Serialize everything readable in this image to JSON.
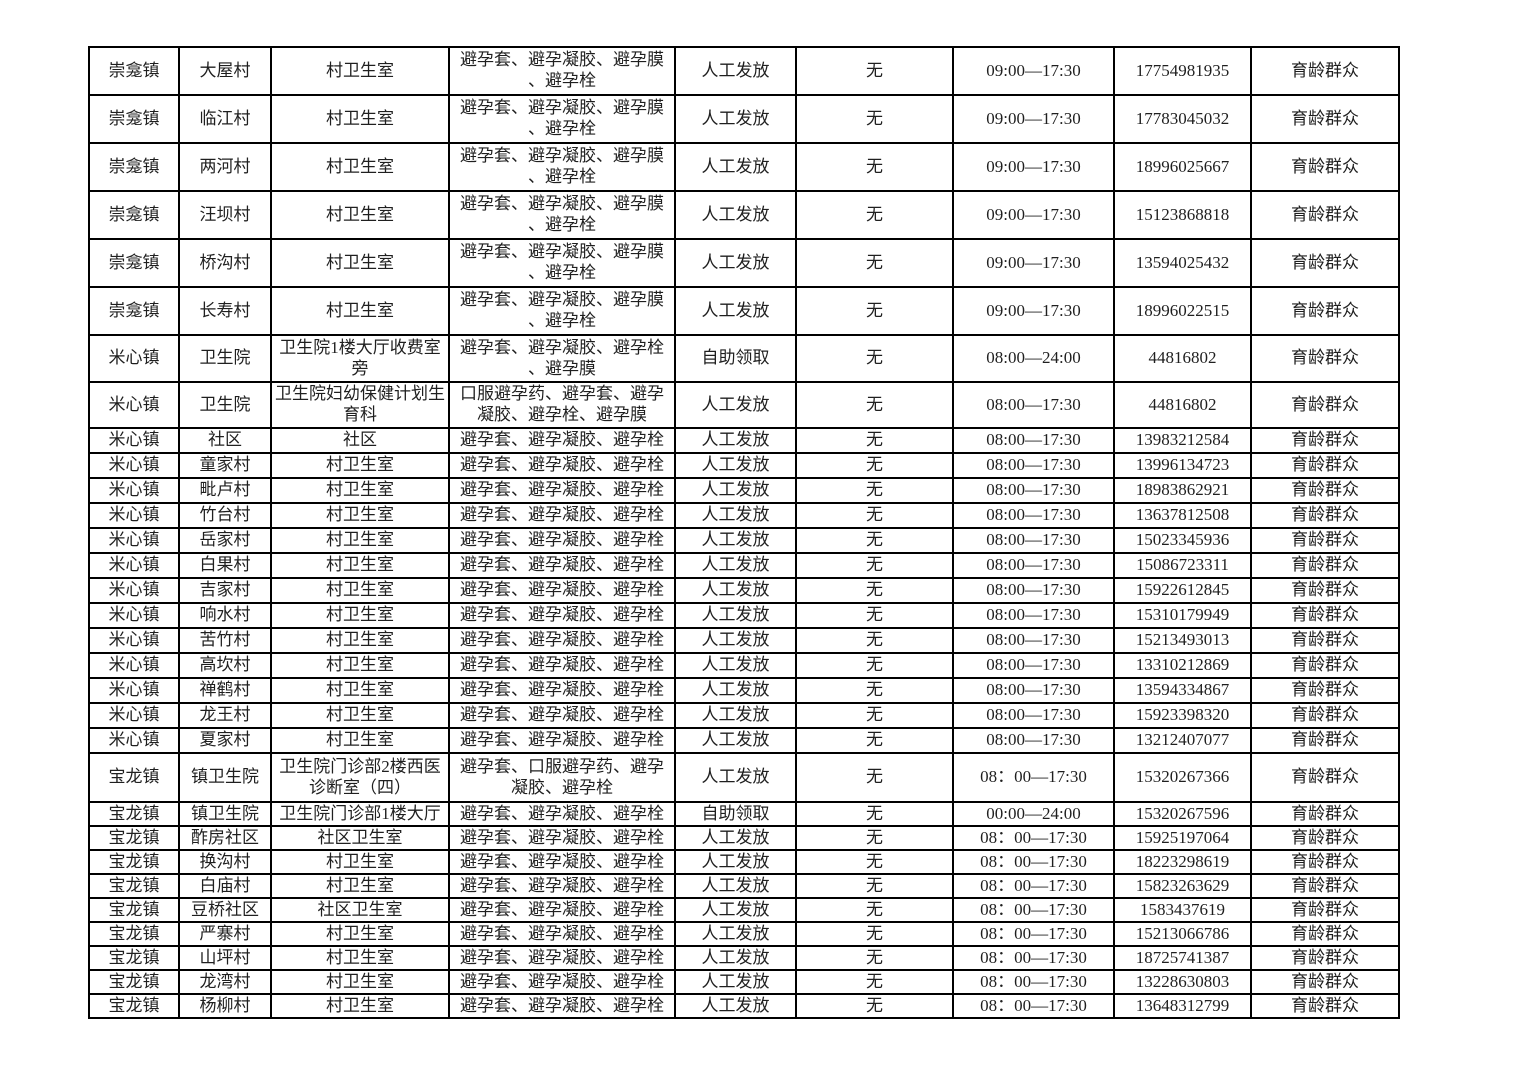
{
  "page": {
    "background_color": "#ffffff",
    "text_color": "#1f1f1f",
    "grid_color": "#000000"
  },
  "table": {
    "rows": [
      [
        "崇龛镇",
        "大屋村",
        "村卫生室",
        "避孕套、避孕凝胶、避孕膜、避孕栓",
        "人工发放",
        "无",
        "09:00—17:30",
        "17754981935",
        "育龄群众"
      ],
      [
        "崇龛镇",
        "临江村",
        "村卫生室",
        "避孕套、避孕凝胶、避孕膜、避孕栓",
        "人工发放",
        "无",
        "09:00—17:30",
        "17783045032",
        "育龄群众"
      ],
      [
        "崇龛镇",
        "两河村",
        "村卫生室",
        "避孕套、避孕凝胶、避孕膜、避孕栓",
        "人工发放",
        "无",
        "09:00—17:30",
        "18996025667",
        "育龄群众"
      ],
      [
        "崇龛镇",
        "汪坝村",
        "村卫生室",
        "避孕套、避孕凝胶、避孕膜、避孕栓",
        "人工发放",
        "无",
        "09:00—17:30",
        "15123868818",
        "育龄群众"
      ],
      [
        "崇龛镇",
        "桥沟村",
        "村卫生室",
        "避孕套、避孕凝胶、避孕膜、避孕栓",
        "人工发放",
        "无",
        "09:00—17:30",
        "13594025432",
        "育龄群众"
      ],
      [
        "崇龛镇",
        "长寿村",
        "村卫生室",
        "避孕套、避孕凝胶、避孕膜、避孕栓",
        "人工发放",
        "无",
        "09:00—17:30",
        "18996022515",
        "育龄群众"
      ],
      [
        "米心镇",
        "卫生院",
        "卫生院1楼大厅收费室旁",
        "避孕套、避孕凝胶、避孕栓、避孕膜",
        "自助领取",
        "无",
        "08:00—24:00",
        "44816802",
        "育龄群众"
      ],
      [
        "米心镇",
        "卫生院",
        "卫生院妇幼保健计划生育科",
        "口服避孕药、避孕套、避孕凝胶、避孕栓、避孕膜",
        "人工发放",
        "无",
        "08:00—17:30",
        "44816802",
        "育龄群众"
      ],
      [
        "米心镇",
        "社区",
        "社区",
        "避孕套、避孕凝胶、避孕栓",
        "人工发放",
        "无",
        "08:00—17:30",
        "13983212584",
        "育龄群众"
      ],
      [
        "米心镇",
        "童家村",
        "村卫生室",
        "避孕套、避孕凝胶、避孕栓",
        "人工发放",
        "无",
        "08:00—17:30",
        "13996134723",
        "育龄群众"
      ],
      [
        "米心镇",
        "毗卢村",
        "村卫生室",
        "避孕套、避孕凝胶、避孕栓",
        "人工发放",
        "无",
        "08:00—17:30",
        "18983862921",
        "育龄群众"
      ],
      [
        "米心镇",
        "竹台村",
        "村卫生室",
        "避孕套、避孕凝胶、避孕栓",
        "人工发放",
        "无",
        "08:00—17:30",
        "13637812508",
        "育龄群众"
      ],
      [
        "米心镇",
        "岳家村",
        "村卫生室",
        "避孕套、避孕凝胶、避孕栓",
        "人工发放",
        "无",
        "08:00—17:30",
        "15023345936",
        "育龄群众"
      ],
      [
        "米心镇",
        "白果村",
        "村卫生室",
        "避孕套、避孕凝胶、避孕栓",
        "人工发放",
        "无",
        "08:00—17:30",
        "15086723311",
        "育龄群众"
      ],
      [
        "米心镇",
        "吉家村",
        "村卫生室",
        "避孕套、避孕凝胶、避孕栓",
        "人工发放",
        "无",
        "08:00—17:30",
        "15922612845",
        "育龄群众"
      ],
      [
        "米心镇",
        "响水村",
        "村卫生室",
        "避孕套、避孕凝胶、避孕栓",
        "人工发放",
        "无",
        "08:00—17:30",
        "15310179949",
        "育龄群众"
      ],
      [
        "米心镇",
        "苦竹村",
        "村卫生室",
        "避孕套、避孕凝胶、避孕栓",
        "人工发放",
        "无",
        "08:00—17:30",
        "15213493013",
        "育龄群众"
      ],
      [
        "米心镇",
        "高坎村",
        "村卫生室",
        "避孕套、避孕凝胶、避孕栓",
        "人工发放",
        "无",
        "08:00—17:30",
        "13310212869",
        "育龄群众"
      ],
      [
        "米心镇",
        "禅鹤村",
        "村卫生室",
        "避孕套、避孕凝胶、避孕栓",
        "人工发放",
        "无",
        "08:00—17:30",
        "13594334867",
        "育龄群众"
      ],
      [
        "米心镇",
        "龙王村",
        "村卫生室",
        "避孕套、避孕凝胶、避孕栓",
        "人工发放",
        "无",
        "08:00—17:30",
        "15923398320",
        "育龄群众"
      ],
      [
        "米心镇",
        "夏家村",
        "村卫生室",
        "避孕套、避孕凝胶、避孕栓",
        "人工发放",
        "无",
        "08:00—17:30",
        "13212407077",
        "育龄群众"
      ],
      [
        "宝龙镇",
        "镇卫生院",
        "卫生院门诊部2楼西医诊断室（四）",
        "避孕套、口服避孕药、避孕凝胶、避孕栓",
        "人工发放",
        "无",
        "08：00—17:30",
        "15320267366",
        "育龄群众"
      ],
      [
        "宝龙镇",
        "镇卫生院",
        "卫生院门诊部1楼大厅",
        "避孕套、避孕凝胶、避孕栓",
        "自助领取",
        "无",
        "00:00—24:00",
        "15320267596",
        "育龄群众"
      ],
      [
        "宝龙镇",
        "酢房社区",
        "社区卫生室",
        "避孕套、避孕凝胶、避孕栓",
        "人工发放",
        "无",
        "08：00—17:30",
        "15925197064",
        "育龄群众"
      ],
      [
        "宝龙镇",
        "换沟村",
        "村卫生室",
        "避孕套、避孕凝胶、避孕栓",
        "人工发放",
        "无",
        "08：00—17:30",
        "18223298619",
        "育龄群众"
      ],
      [
        "宝龙镇",
        "白庙村",
        "村卫生室",
        "避孕套、避孕凝胶、避孕栓",
        "人工发放",
        "无",
        "08：00—17:30",
        "15823263629",
        "育龄群众"
      ],
      [
        "宝龙镇",
        "豆桥社区",
        "社区卫生室",
        "避孕套、避孕凝胶、避孕栓",
        "人工发放",
        "无",
        "08：00—17:30",
        "1583437619",
        "育龄群众"
      ],
      [
        "宝龙镇",
        "严寨村",
        "村卫生室",
        "避孕套、避孕凝胶、避孕栓",
        "人工发放",
        "无",
        "08：00—17:30",
        "15213066786",
        "育龄群众"
      ],
      [
        "宝龙镇",
        "山坪村",
        "村卫生室",
        "避孕套、避孕凝胶、避孕栓",
        "人工发放",
        "无",
        "08：00—17:30",
        "18725741387",
        "育龄群众"
      ],
      [
        "宝龙镇",
        "龙湾村",
        "村卫生室",
        "避孕套、避孕凝胶、避孕栓",
        "人工发放",
        "无",
        "08：00—17:30",
        "13228630803",
        "育龄群众"
      ],
      [
        "宝龙镇",
        "杨柳村",
        "村卫生室",
        "避孕套、避孕凝胶、避孕栓",
        "人工发放",
        "无",
        "08：00—17:30",
        "13648312799",
        "育龄群众"
      ]
    ]
  }
}
